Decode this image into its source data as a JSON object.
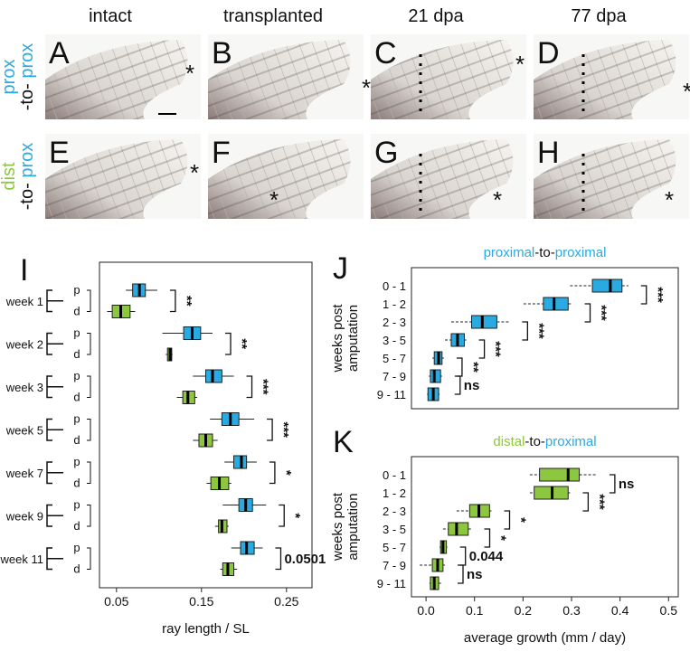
{
  "headers": [
    "intact",
    "transplanted",
    "21 dpa",
    "77 dpa"
  ],
  "rows": [
    {
      "parts": [
        "prox",
        "-to-",
        "prox"
      ]
    },
    {
      "parts": [
        "dist",
        "-to-",
        "prox"
      ]
    }
  ],
  "panels": [
    {
      "letter": "A",
      "marker": "*"
    },
    {
      "letter": "B",
      "marker": "*"
    },
    {
      "letter": "C",
      "marker": "*"
    },
    {
      "letter": "D",
      "marker": "*"
    },
    {
      "letter": "E",
      "marker": "*"
    },
    {
      "letter": "F",
      "marker": "*"
    },
    {
      "letter": "G",
      "marker": "*"
    },
    {
      "letter": "H",
      "marker": "*"
    }
  ],
  "chart_data": [
    {
      "type": "boxplot",
      "letter": "I",
      "x_label": "ray length / SL",
      "xlim": [
        0.03,
        0.28
      ],
      "xticks": [
        0.05,
        0.15,
        0.25
      ],
      "categories": [
        "week 1",
        "week 2",
        "week 3",
        "week 5",
        "week 7",
        "week 9",
        "week 11"
      ],
      "series": [
        {
          "name": "p",
          "color": "#29abe2",
          "boxes": [
            {
              "whislo": 0.061,
              "q1": 0.069,
              "med": 0.077,
              "q3": 0.084,
              "whishi": 0.098
            },
            {
              "whislo": 0.104,
              "q1": 0.129,
              "med": 0.139,
              "q3": 0.149,
              "whishi": 0.163
            },
            {
              "whislo": 0.14,
              "q1": 0.155,
              "med": 0.163,
              "q3": 0.174,
              "whishi": 0.188
            },
            {
              "whislo": 0.16,
              "q1": 0.174,
              "med": 0.184,
              "q3": 0.194,
              "whishi": 0.212
            },
            {
              "whislo": 0.177,
              "q1": 0.188,
              "med": 0.197,
              "q3": 0.203,
              "whishi": 0.215
            },
            {
              "whislo": 0.175,
              "q1": 0.194,
              "med": 0.202,
              "q3": 0.21,
              "whishi": 0.226
            },
            {
              "whislo": 0.185,
              "q1": 0.196,
              "med": 0.203,
              "q3": 0.212,
              "whishi": 0.222
            }
          ]
        },
        {
          "name": "d",
          "color": "#8dc63f",
          "boxes": [
            {
              "whislo": 0.039,
              "q1": 0.045,
              "med": 0.055,
              "q3": 0.066,
              "whishi": 0.072
            },
            {
              "whislo": 0.108,
              "q1": 0.11,
              "med": 0.113,
              "q3": 0.115,
              "whishi": 0.116
            },
            {
              "whislo": 0.121,
              "q1": 0.128,
              "med": 0.134,
              "q3": 0.142,
              "whishi": 0.145
            },
            {
              "whislo": 0.14,
              "q1": 0.147,
              "med": 0.155,
              "q3": 0.163,
              "whishi": 0.169
            },
            {
              "whislo": 0.156,
              "q1": 0.161,
              "med": 0.171,
              "q3": 0.182,
              "whishi": 0.185
            },
            {
              "whislo": 0.166,
              "q1": 0.17,
              "med": 0.174,
              "q3": 0.18,
              "whishi": 0.182
            },
            {
              "whislo": 0.172,
              "q1": 0.175,
              "med": 0.181,
              "q3": 0.188,
              "whishi": 0.192
            }
          ]
        }
      ],
      "significance": [
        "**",
        "**",
        "***",
        "***",
        "*",
        "*",
        "0.0501"
      ]
    },
    {
      "type": "boxplot",
      "letter": "J",
      "title_parts": [
        "proximal",
        "-to-",
        "proximal"
      ],
      "y_label": [
        "weeks post",
        "amputation"
      ],
      "xlim": [
        -0.03,
        0.52
      ],
      "categories": [
        "0 - 1",
        "1 - 2",
        "2 - 3",
        "3 - 5",
        "5 - 7",
        "7 - 9",
        "9 - 11"
      ],
      "series": [
        {
          "color": "#29abe2",
          "boxes": [
            {
              "whislo": 0.297,
              "q1": 0.343,
              "med": 0.38,
              "q3": 0.404,
              "whishi": 0.417
            },
            {
              "whislo": 0.201,
              "q1": 0.242,
              "med": 0.264,
              "q3": 0.293,
              "whishi": 0.301
            },
            {
              "whislo": 0.052,
              "q1": 0.094,
              "med": 0.116,
              "q3": 0.146,
              "whishi": 0.172
            },
            {
              "whislo": 0.039,
              "q1": 0.052,
              "med": 0.065,
              "q3": 0.079,
              "whishi": 0.083
            },
            {
              "whislo": 0.013,
              "q1": 0.017,
              "med": 0.026,
              "q3": 0.033,
              "whishi": 0.037
            },
            {
              "whislo": 0.006,
              "q1": 0.009,
              "med": 0.017,
              "q3": 0.03,
              "whishi": 0.033
            },
            {
              "whislo": 0.002,
              "q1": 0.004,
              "med": 0.015,
              "q3": 0.026,
              "whishi": 0.028
            }
          ]
        }
      ],
      "significance": [
        "***",
        "***",
        "***",
        "***",
        "**",
        "ns"
      ]
    },
    {
      "type": "boxplot",
      "letter": "K",
      "title_parts": [
        "distal",
        "-to-",
        "proximal"
      ],
      "y_label": [
        "weeks post",
        "amputation"
      ],
      "x_label": "average growth (mm / day)",
      "xlim": [
        -0.03,
        0.52
      ],
      "xticks": [
        {
          "value": 0,
          "label": "0.0"
        },
        0.1,
        0.2,
        0.3,
        0.4,
        0.5
      ],
      "categories": [
        "0 - 1",
        "1 - 2",
        "2 - 3",
        "3 - 5",
        "5 - 7",
        "7 - 9",
        "9 - 11"
      ],
      "series": [
        {
          "color": "#8dc63f",
          "boxes": [
            {
              "whislo": 0.214,
              "q1": 0.234,
              "med": 0.293,
              "q3": 0.316,
              "whishi": 0.352
            },
            {
              "whislo": 0.214,
              "q1": 0.223,
              "med": 0.26,
              "q3": 0.293,
              "whishi": 0.297
            },
            {
              "whislo": 0.063,
              "q1": 0.09,
              "med": 0.109,
              "q3": 0.131,
              "whishi": 0.135
            },
            {
              "whislo": 0.035,
              "q1": 0.046,
              "med": 0.063,
              "q3": 0.087,
              "whishi": 0.094
            },
            {
              "whislo": 0.028,
              "q1": 0.03,
              "med": 0.035,
              "q3": 0.042,
              "whishi": 0.044
            },
            {
              "whislo": -0.013,
              "q1": 0.013,
              "med": 0.024,
              "q3": 0.035,
              "whishi": 0.039
            },
            {
              "whislo": 0.007,
              "q1": 0.009,
              "med": 0.017,
              "q3": 0.026,
              "whishi": 0.031
            }
          ]
        }
      ],
      "significance": [
        "ns",
        "***",
        "*",
        "*",
        "0.044",
        "ns"
      ]
    }
  ]
}
